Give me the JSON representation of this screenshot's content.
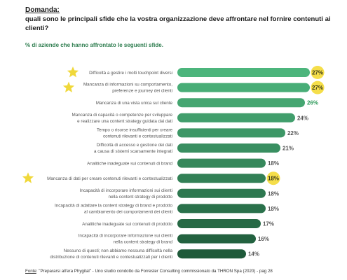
{
  "header": {
    "label": "Domanda:",
    "question": "quali sono le principali sfide che la vostra organizzazione deve affrontare nel fornire contenuti ai clienti?"
  },
  "subtitle": "% di aziende che hanno affrontato le seguenti sfide.",
  "footer": {
    "source_label": "Fonte",
    "source_text": ": \"Prepararsi all'era Phygital\" - Uno studio condotto da Forrester Consulting commissionato da THRON Spa (2020) - pag 28"
  },
  "colors": {
    "bar_light": "#4cb57c",
    "bar_dark": "#1f5a3a",
    "highlight": "#f5de4a",
    "star": "#f0d83a",
    "value_green": "#2e9a5a",
    "value_gray": "#555555"
  },
  "chart_data": {
    "type": "bar",
    "orientation": "horizontal",
    "xlim": [
      0,
      27
    ],
    "categories": [
      [
        "Difficoltà a gestire i molti touchpoint diversi"
      ],
      [
        "Mancanza di informazioni su comportamento,",
        "preferenze e journey dei clienti"
      ],
      [
        "Mancanza di una vista unica sul cliente"
      ],
      [
        "Mancanza di capacità o competenze per sviluppare",
        "e realizzare una content strategy guidata dai dati"
      ],
      [
        "Tempo o risorse insufficienti per creare",
        "contenuti rilevanti e contestualizzati"
      ],
      [
        "Difficoltà di accesso e gestione dei dati",
        "a causa di sistemi scarsamente integrati"
      ],
      [
        "Analitiche inadeguate sui contenuti di brand"
      ],
      [
        "Mancanza di dati per creare contenuti rilevanti e contestualizzati"
      ],
      [
        "Incapacità di incorporare informazioni sui clienti",
        "nella content strategy di prodotto"
      ],
      [
        "Incapacità di adattare la content strategy di brand e prodotto",
        "al cambiamento dei comportamenti dei clienti"
      ],
      [
        "Analitiche inadeguate sui contenuti di prodotto"
      ],
      [
        "Incapacità di incorporare informazione sui clienti",
        "nella content strategy di brand"
      ],
      [
        "Nessuno di questi; non abbiamo nessuna difficoltà nella",
        "distribuzione di contenuti rilevanti e contestualizzati per i clienti"
      ]
    ],
    "values": [
      27,
      27,
      26,
      24,
      22,
      21,
      18,
      18,
      18,
      18,
      17,
      16,
      14
    ],
    "value_labels": [
      "27%",
      "27%",
      "26%",
      "24%",
      "22%",
      "21%",
      "18%",
      "18%",
      "18%",
      "18%",
      "17%",
      "16%",
      "14%"
    ],
    "highlighted": [
      true,
      true,
      false,
      false,
      false,
      false,
      false,
      true,
      false,
      false,
      false,
      false,
      false
    ],
    "starred": [
      true,
      true,
      false,
      false,
      false,
      false,
      false,
      true,
      false,
      false,
      false,
      false,
      false
    ]
  }
}
